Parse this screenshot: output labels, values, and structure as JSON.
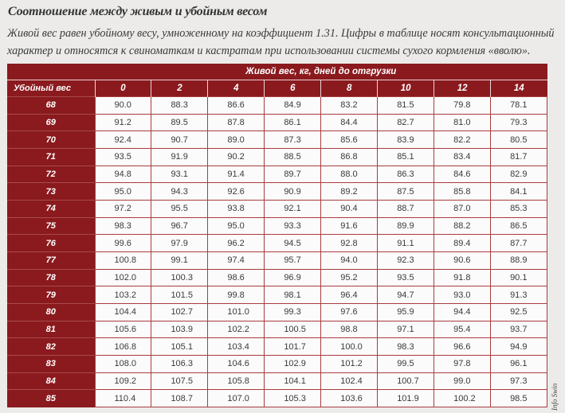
{
  "document": {
    "title": "Соотношение между живым и убойным весом",
    "description": "Живой вес равен убойному весу, умноженному на коэффициент 1.31. Цифры в таблице носят консультационный характер и относятся к свиноматкам и кастратам при использовании системы сухого кормления «вволю».",
    "watermark": "Info Swin"
  },
  "colors": {
    "header_bg": "#8a1a1e",
    "cell_bg": "#fbfbfb",
    "grid": "#a93c40"
  },
  "table": {
    "title": "Живой вес, кг, дней до отгрузки",
    "corner_label": "Убойный вес",
    "columns": [
      "0",
      "2",
      "4",
      "6",
      "8",
      "10",
      "12",
      "14"
    ],
    "rows": [
      {
        "label": "68",
        "values": [
          "90.0",
          "88.3",
          "86.6",
          "84.9",
          "83.2",
          "81.5",
          "79.8",
          "78.1"
        ]
      },
      {
        "label": "69",
        "values": [
          "91.2",
          "89.5",
          "87.8",
          "86.1",
          "84.4",
          "82.7",
          "81.0",
          "79.3"
        ]
      },
      {
        "label": "70",
        "values": [
          "92.4",
          "90.7",
          "89.0",
          "87.3",
          "85.6",
          "83.9",
          "82.2",
          "80.5"
        ]
      },
      {
        "label": "71",
        "values": [
          "93.5",
          "91.9",
          "90.2",
          "88.5",
          "86.8",
          "85.1",
          "83.4",
          "81.7"
        ]
      },
      {
        "label": "72",
        "values": [
          "94.8",
          "93.1",
          "91.4",
          "89.7",
          "88.0",
          "86.3",
          "84.6",
          "82.9"
        ]
      },
      {
        "label": "73",
        "values": [
          "95.0",
          "94.3",
          "92.6",
          "90.9",
          "89.2",
          "87.5",
          "85.8",
          "84.1"
        ]
      },
      {
        "label": "74",
        "values": [
          "97.2",
          "95.5",
          "93.8",
          "92.1",
          "90.4",
          "88.7",
          "87.0",
          "85.3"
        ]
      },
      {
        "label": "75",
        "values": [
          "98.3",
          "96.7",
          "95.0",
          "93.3",
          "91.6",
          "89.9",
          "88.2",
          "86.5"
        ]
      },
      {
        "label": "76",
        "values": [
          "99.6",
          "97.9",
          "96.2",
          "94.5",
          "92.8",
          "91.1",
          "89.4",
          "87.7"
        ]
      },
      {
        "label": "77",
        "values": [
          "100.8",
          "99.1",
          "97.4",
          "95.7",
          "94.0",
          "92.3",
          "90.6",
          "88.9"
        ]
      },
      {
        "label": "78",
        "values": [
          "102.0",
          "100.3",
          "98.6",
          "96.9",
          "95.2",
          "93.5",
          "91.8",
          "90.1"
        ]
      },
      {
        "label": "79",
        "values": [
          "103.2",
          "101.5",
          "99.8",
          "98.1",
          "96.4",
          "94.7",
          "93.0",
          "91.3"
        ]
      },
      {
        "label": "80",
        "values": [
          "104.4",
          "102.7",
          "101.0",
          "99.3",
          "97.6",
          "95.9",
          "94.4",
          "92.5"
        ]
      },
      {
        "label": "81",
        "values": [
          "105.6",
          "103.9",
          "102.2",
          "100.5",
          "98.8",
          "97.1",
          "95.4",
          "93.7"
        ]
      },
      {
        "label": "82",
        "values": [
          "106.8",
          "105.1",
          "103.4",
          "101.7",
          "100.0",
          "98.3",
          "96.6",
          "94.9"
        ]
      },
      {
        "label": "83",
        "values": [
          "108.0",
          "106.3",
          "104.6",
          "102.9",
          "101.2",
          "99.5",
          "97.8",
          "96.1"
        ]
      },
      {
        "label": "84",
        "values": [
          "109.2",
          "107.5",
          "105.8",
          "104.1",
          "102.4",
          "100.7",
          "99.0",
          "97.3"
        ]
      },
      {
        "label": "85",
        "values": [
          "110.4",
          "108.7",
          "107.0",
          "105.3",
          "103.6",
          "101.9",
          "100.2",
          "98.5"
        ]
      }
    ]
  }
}
